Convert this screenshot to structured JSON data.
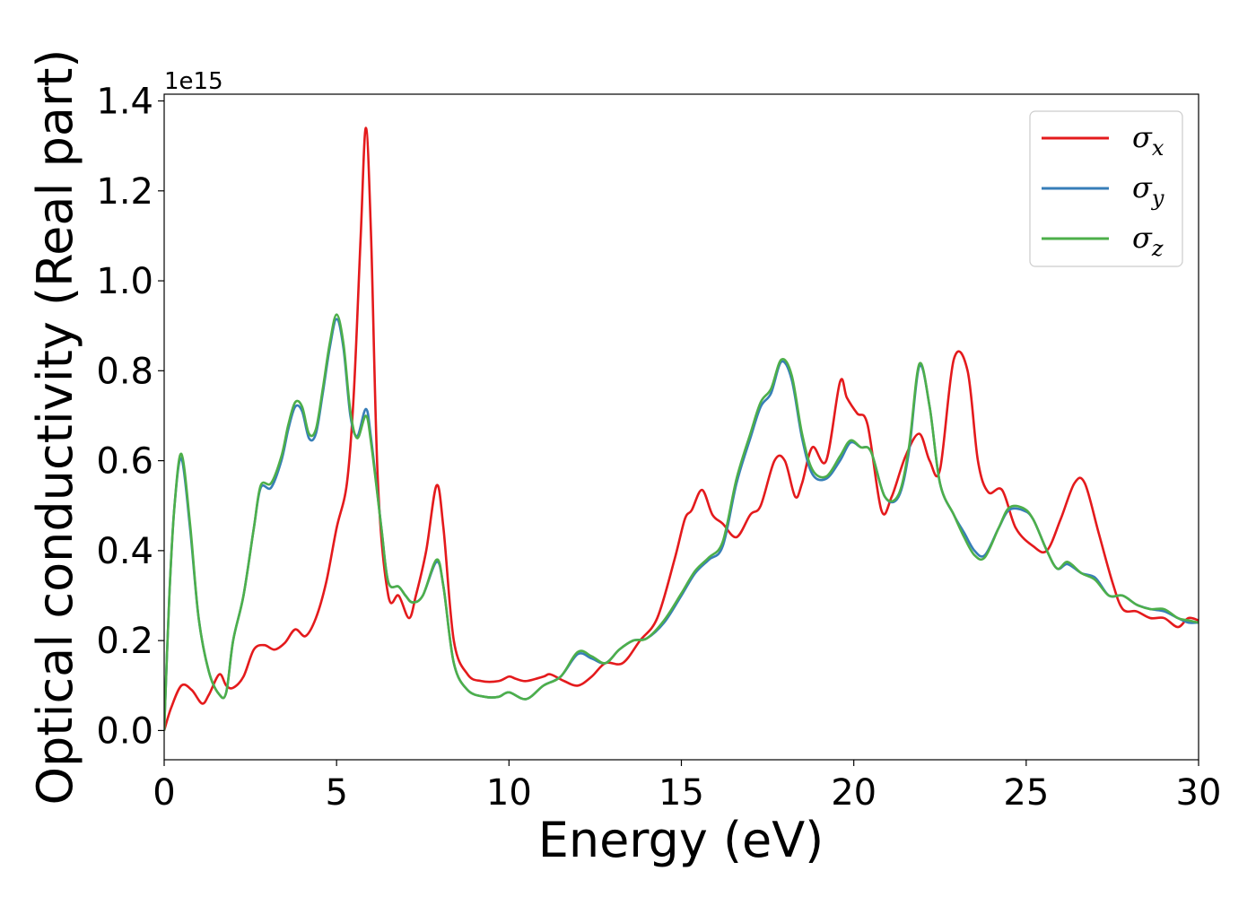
{
  "chart_data": {
    "type": "line",
    "xlabel": "Energy (eV)",
    "ylabel": "Optical conductivity (Real part)",
    "y_offset_label": "1e15",
    "xlim": [
      0,
      30
    ],
    "ylim": [
      -0.065,
      1.415
    ],
    "x_ticks": [
      0,
      5,
      10,
      15,
      20,
      25,
      30
    ],
    "x_tick_labels": [
      "0",
      "5",
      "10",
      "15",
      "20",
      "25",
      "30"
    ],
    "y_ticks": [
      0.0,
      0.2,
      0.4,
      0.6,
      0.8,
      1.0,
      1.2,
      1.4
    ],
    "y_tick_labels": [
      "0.0",
      "0.2",
      "0.4",
      "0.6",
      "0.8",
      "1.0",
      "1.2",
      "1.4"
    ],
    "grid": false,
    "legend_position": "top-right",
    "series": [
      {
        "name": "σx",
        "legend_base": "σ",
        "legend_sub": "x",
        "color": "#e41a1c",
        "x": [
          0,
          0.2,
          0.5,
          0.8,
          1.1,
          1.3,
          1.6,
          1.8,
          2.0,
          2.3,
          2.6,
          2.9,
          3.2,
          3.5,
          3.8,
          4.1,
          4.4,
          4.7,
          5.0,
          5.3,
          5.5,
          5.7,
          5.85,
          6.0,
          6.2,
          6.5,
          6.8,
          7.1,
          7.3,
          7.6,
          7.9,
          8.1,
          8.4,
          8.8,
          9.2,
          9.7,
          10.0,
          10.2,
          10.5,
          11.0,
          11.2,
          11.6,
          12.0,
          12.4,
          12.8,
          13.3,
          13.8,
          14.3,
          14.8,
          15.1,
          15.3,
          15.6,
          15.9,
          16.2,
          16.6,
          17.0,
          17.3,
          17.7,
          18.0,
          18.3,
          18.5,
          18.8,
          19.2,
          19.6,
          19.8,
          20.1,
          20.4,
          20.8,
          21.1,
          21.5,
          21.9,
          22.2,
          22.5,
          22.9,
          23.3,
          23.6,
          23.9,
          24.3,
          24.7,
          25.2,
          25.6,
          26.0,
          26.4,
          26.7,
          27.1,
          27.5,
          27.8,
          28.2,
          28.6,
          29.0,
          29.4,
          29.7,
          30.0
        ],
        "values": [
          0.0,
          0.05,
          0.1,
          0.09,
          0.06,
          0.08,
          0.125,
          0.1,
          0.095,
          0.12,
          0.18,
          0.19,
          0.18,
          0.195,
          0.225,
          0.21,
          0.25,
          0.33,
          0.45,
          0.55,
          0.75,
          1.1,
          1.34,
          1.1,
          0.55,
          0.3,
          0.3,
          0.25,
          0.3,
          0.4,
          0.545,
          0.45,
          0.2,
          0.125,
          0.11,
          0.11,
          0.12,
          0.115,
          0.11,
          0.12,
          0.125,
          0.11,
          0.1,
          0.12,
          0.15,
          0.15,
          0.2,
          0.25,
          0.38,
          0.47,
          0.49,
          0.535,
          0.48,
          0.46,
          0.43,
          0.48,
          0.5,
          0.6,
          0.6,
          0.52,
          0.55,
          0.63,
          0.6,
          0.775,
          0.74,
          0.705,
          0.68,
          0.49,
          0.52,
          0.61,
          0.66,
          0.6,
          0.58,
          0.825,
          0.8,
          0.6,
          0.53,
          0.535,
          0.45,
          0.41,
          0.4,
          0.47,
          0.55,
          0.55,
          0.44,
          0.33,
          0.27,
          0.265,
          0.25,
          0.25,
          0.23,
          0.25,
          0.245
        ]
      },
      {
        "name": "σy",
        "legend_base": "σ",
        "legend_sub": "y",
        "color": "#377eb8",
        "x": [
          0,
          0.15,
          0.3,
          0.5,
          0.75,
          1.0,
          1.3,
          1.6,
          1.8,
          2.0,
          2.3,
          2.6,
          2.8,
          3.1,
          3.4,
          3.6,
          3.8,
          4.0,
          4.2,
          4.4,
          4.6,
          4.8,
          5.0,
          5.2,
          5.4,
          5.6,
          5.85,
          6.0,
          6.3,
          6.5,
          6.8,
          7.0,
          7.2,
          7.5,
          7.9,
          8.1,
          8.4,
          8.8,
          9.3,
          9.7,
          10.0,
          10.5,
          11.0,
          11.5,
          12.0,
          12.4,
          12.8,
          13.2,
          13.6,
          14.0,
          14.5,
          15.0,
          15.4,
          15.8,
          16.2,
          16.6,
          17.0,
          17.3,
          17.6,
          17.9,
          18.2,
          18.5,
          18.8,
          19.2,
          19.6,
          19.9,
          20.2,
          20.5,
          20.9,
          21.3,
          21.6,
          21.9,
          22.2,
          22.5,
          22.9,
          23.2,
          23.5,
          23.8,
          24.2,
          24.5,
          24.9,
          25.2,
          25.6,
          25.9,
          26.2,
          26.6,
          27.0,
          27.4,
          27.8,
          28.2,
          28.6,
          29.0,
          29.4,
          29.7,
          30.0
        ],
        "values": [
          0.0,
          0.3,
          0.5,
          0.605,
          0.45,
          0.25,
          0.13,
          0.08,
          0.085,
          0.2,
          0.3,
          0.45,
          0.54,
          0.54,
          0.6,
          0.67,
          0.72,
          0.71,
          0.65,
          0.66,
          0.75,
          0.85,
          0.915,
          0.85,
          0.7,
          0.655,
          0.715,
          0.65,
          0.45,
          0.33,
          0.32,
          0.3,
          0.285,
          0.3,
          0.375,
          0.32,
          0.15,
          0.09,
          0.075,
          0.075,
          0.085,
          0.07,
          0.1,
          0.12,
          0.17,
          0.16,
          0.15,
          0.18,
          0.2,
          0.205,
          0.24,
          0.3,
          0.35,
          0.38,
          0.41,
          0.55,
          0.65,
          0.72,
          0.75,
          0.82,
          0.78,
          0.65,
          0.57,
          0.56,
          0.6,
          0.64,
          0.63,
          0.62,
          0.52,
          0.52,
          0.62,
          0.81,
          0.72,
          0.55,
          0.48,
          0.44,
          0.4,
          0.39,
          0.45,
          0.49,
          0.49,
          0.47,
          0.4,
          0.36,
          0.37,
          0.35,
          0.34,
          0.3,
          0.3,
          0.28,
          0.27,
          0.265,
          0.25,
          0.24,
          0.24
        ]
      },
      {
        "name": "σz",
        "legend_base": "σ",
        "legend_sub": "z",
        "color": "#4daf4a",
        "x": [
          0,
          0.15,
          0.3,
          0.5,
          0.75,
          1.0,
          1.3,
          1.6,
          1.8,
          2.0,
          2.3,
          2.6,
          2.8,
          3.1,
          3.4,
          3.6,
          3.8,
          4.0,
          4.2,
          4.4,
          4.6,
          4.8,
          5.0,
          5.2,
          5.4,
          5.6,
          5.85,
          6.0,
          6.3,
          6.5,
          6.8,
          7.0,
          7.2,
          7.5,
          7.9,
          8.1,
          8.4,
          8.8,
          9.3,
          9.7,
          10.0,
          10.5,
          11.0,
          11.5,
          12.0,
          12.4,
          12.8,
          13.2,
          13.6,
          14.0,
          14.5,
          15.0,
          15.4,
          15.8,
          16.2,
          16.6,
          17.0,
          17.3,
          17.6,
          17.9,
          18.2,
          18.5,
          18.8,
          19.2,
          19.6,
          19.9,
          20.2,
          20.5,
          20.9,
          21.3,
          21.6,
          21.9,
          22.2,
          22.5,
          22.9,
          23.2,
          23.5,
          23.8,
          24.2,
          24.5,
          24.9,
          25.2,
          25.6,
          25.9,
          26.2,
          26.6,
          27.0,
          27.4,
          27.8,
          28.2,
          28.6,
          29.0,
          29.4,
          29.7,
          30.0
        ],
        "values": [
          0.0,
          0.3,
          0.5,
          0.615,
          0.46,
          0.25,
          0.13,
          0.08,
          0.085,
          0.2,
          0.3,
          0.45,
          0.545,
          0.55,
          0.61,
          0.68,
          0.73,
          0.72,
          0.66,
          0.67,
          0.76,
          0.86,
          0.925,
          0.86,
          0.71,
          0.65,
          0.7,
          0.64,
          0.45,
          0.33,
          0.32,
          0.3,
          0.285,
          0.3,
          0.38,
          0.32,
          0.15,
          0.09,
          0.075,
          0.075,
          0.085,
          0.07,
          0.1,
          0.12,
          0.175,
          0.165,
          0.15,
          0.18,
          0.2,
          0.205,
          0.245,
          0.305,
          0.355,
          0.385,
          0.42,
          0.56,
          0.66,
          0.73,
          0.76,
          0.825,
          0.79,
          0.66,
          0.58,
          0.565,
          0.61,
          0.645,
          0.63,
          0.62,
          0.52,
          0.525,
          0.63,
          0.815,
          0.72,
          0.55,
          0.48,
          0.43,
          0.39,
          0.385,
          0.45,
          0.495,
          0.495,
          0.47,
          0.4,
          0.36,
          0.375,
          0.35,
          0.335,
          0.3,
          0.3,
          0.28,
          0.27,
          0.27,
          0.25,
          0.245,
          0.24
        ]
      }
    ]
  }
}
